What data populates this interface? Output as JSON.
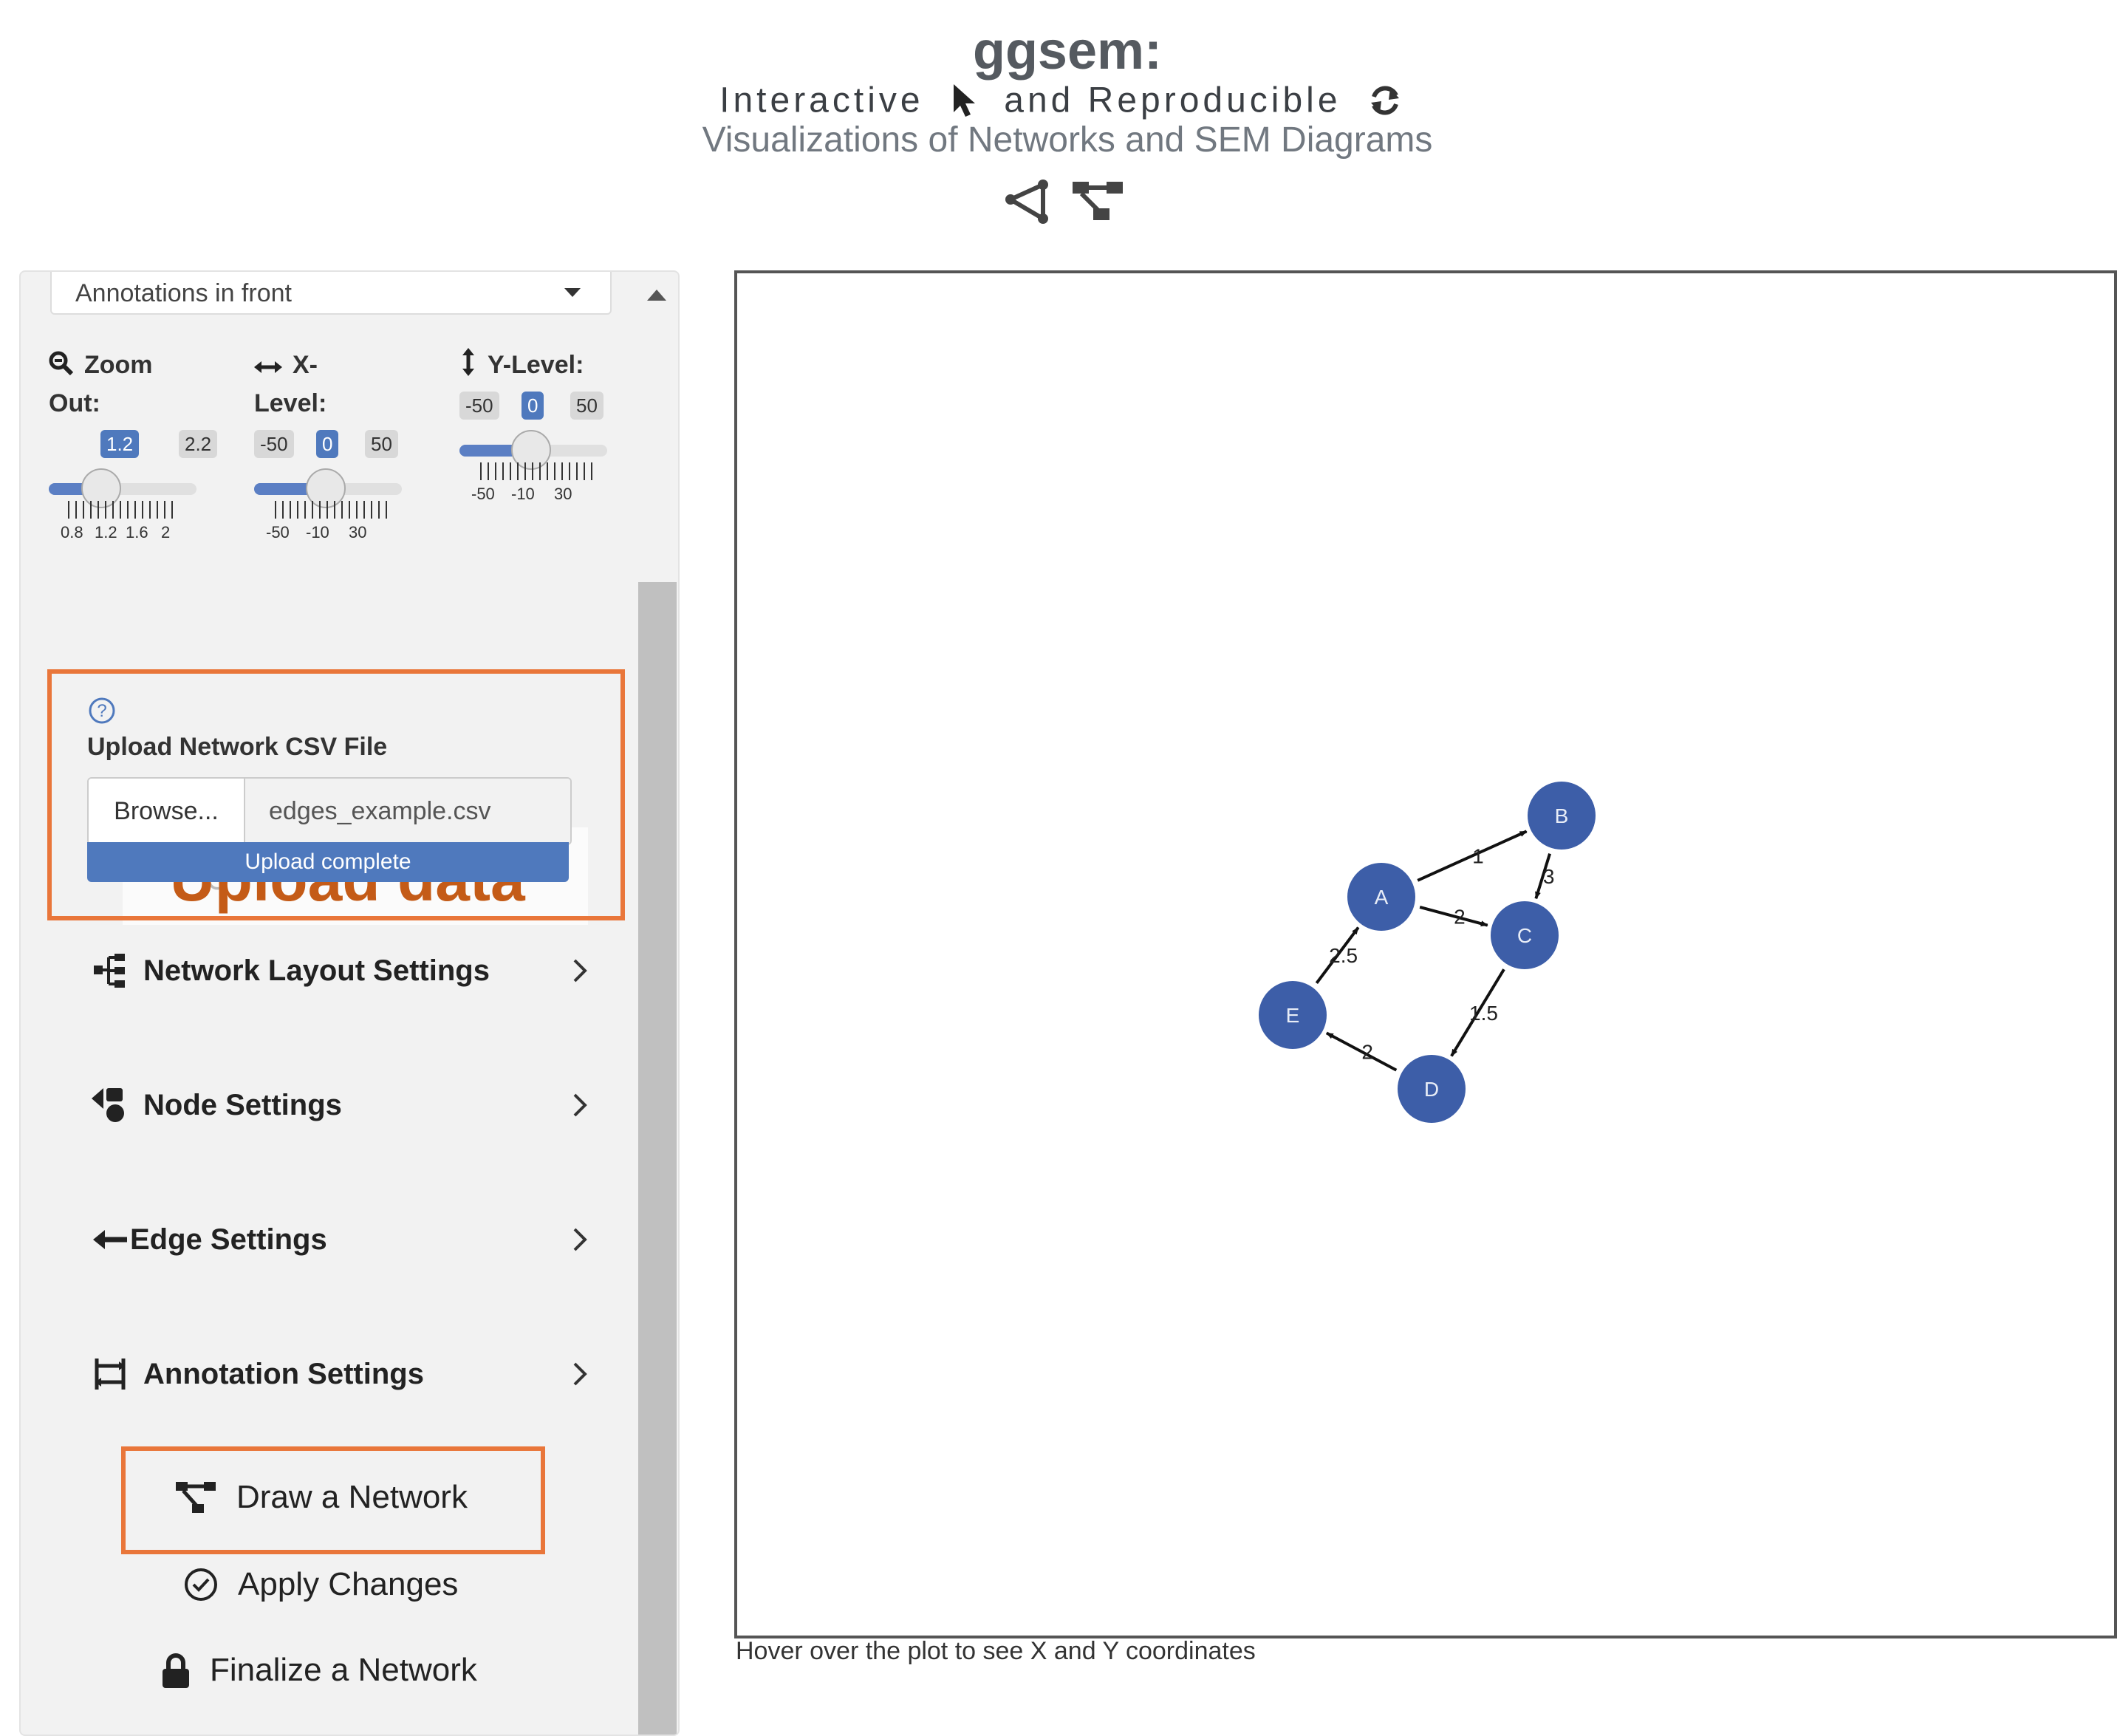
{
  "header": {
    "title": "ggsem:",
    "subtitle_part1": "Interactive",
    "subtitle_part2": "and Reproducible",
    "subtitle_line2": "Visualizations of Networks and SEM Diagrams",
    "icons": [
      "cursor-icon",
      "refresh-icon",
      "network-icon",
      "hierarchy-icon"
    ]
  },
  "sidebar": {
    "layer_select": {
      "value": "Annotations in front"
    },
    "zoom": {
      "label_line1": "Zoom",
      "label_line2": "Out:",
      "value": 1.2,
      "min_label": "1.2",
      "max_label": "2.2",
      "ticks": [
        "0.8",
        "1.2",
        "1.6",
        "2"
      ]
    },
    "xlevel": {
      "label_line1": "X-",
      "label_line2": "Level:",
      "value": 0,
      "min_label": "-50",
      "cur_label": "0",
      "max_label": "50",
      "ticks": [
        "-50",
        "-10",
        "30"
      ]
    },
    "ylevel": {
      "label": "Y-Level:",
      "value": 0,
      "min_label": "-50",
      "cur_label": "0",
      "max_label": "50",
      "ticks": [
        "-50",
        "-10",
        "30"
      ]
    },
    "upload_banner": {
      "title": "Upload data"
    },
    "upload": {
      "label": "Upload Network CSV File",
      "browse": "Browse...",
      "filename": "edges_example.csv",
      "status": "Upload complete",
      "progress": 1.0
    },
    "accordions": [
      {
        "label": "Network Layout Settings"
      },
      {
        "label": "Node Settings"
      },
      {
        "label": "Edge Settings"
      },
      {
        "label": "Annotation Settings"
      }
    ],
    "actions": {
      "draw": "Draw a Network",
      "apply": "Apply Changes",
      "finalize": "Finalize a Network"
    }
  },
  "plot": {
    "hover_hint": "Hover over the plot to see X and Y coordinates",
    "node_color": "#3d5ea8",
    "nodes": [
      {
        "id": "A",
        "label": "A"
      },
      {
        "id": "B",
        "label": "B"
      },
      {
        "id": "C",
        "label": "C"
      },
      {
        "id": "D",
        "label": "D"
      },
      {
        "id": "E",
        "label": "E"
      }
    ],
    "edges": [
      {
        "from": "A",
        "to": "B",
        "label": "1"
      },
      {
        "from": "A",
        "to": "C",
        "label": "2"
      },
      {
        "from": "B",
        "to": "C",
        "label": "3"
      },
      {
        "from": "C",
        "to": "D",
        "label": "1.5"
      },
      {
        "from": "D",
        "to": "E",
        "label": "2"
      },
      {
        "from": "E",
        "to": "A",
        "label": "2.5"
      }
    ]
  },
  "colors": {
    "accent": "#4f79bd",
    "highlight": "#e9763a",
    "banner_text": "#c45b17"
  }
}
